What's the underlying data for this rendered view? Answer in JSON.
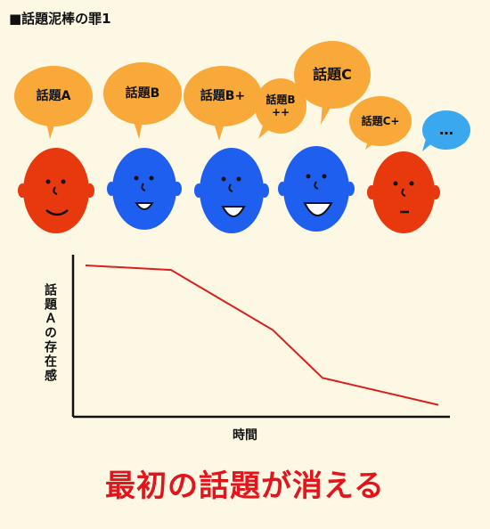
{
  "title": "■話題泥棒の罪1",
  "bubbles": [
    {
      "label": "話題A",
      "color": "#f8a93a"
    },
    {
      "label": "話題B",
      "color": "#f8a93a"
    },
    {
      "label": "話題B+",
      "color": "#f8a93a"
    },
    {
      "label": "話題B++",
      "color": "#f8a93a"
    },
    {
      "label": "話題C",
      "color": "#f8a93a"
    },
    {
      "label": "話題C+",
      "color": "#f8a93a"
    },
    {
      "label": "…",
      "color": "#3aa8ee"
    }
  ],
  "faces": [
    {
      "color": "#e8380e",
      "mouth": "smile"
    },
    {
      "color": "#1f5ff0",
      "mouth": "open-small"
    },
    {
      "color": "#1f5ff0",
      "mouth": "open-medium"
    },
    {
      "color": "#1f5ff0",
      "mouth": "open-large"
    },
    {
      "color": "#e8380e",
      "mouth": "flat"
    }
  ],
  "chart_data": {
    "type": "line",
    "x": [
      0,
      1,
      2,
      3,
      4
    ],
    "series": [
      {
        "values": [
          95,
          92,
          52,
          20,
          2
        ],
        "color": "#d9201c"
      }
    ],
    "xlabel": "時間",
    "ylabel": "話題Ａの存在感",
    "ylim": [
      0,
      100
    ],
    "grid": false
  },
  "caption": "最初の話題が消える",
  "colors": {
    "bubble": "#f8a93a",
    "background": "#fdf8e4",
    "accent": "#e3141c"
  }
}
